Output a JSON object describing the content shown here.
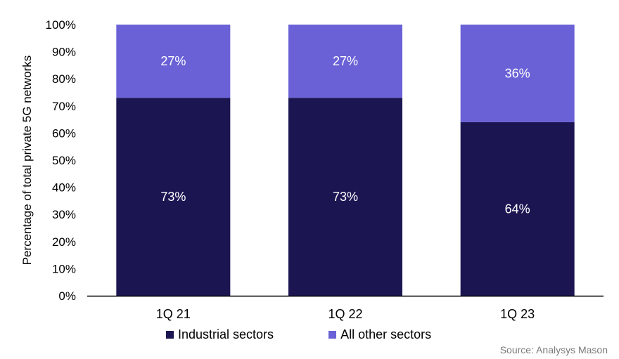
{
  "chart_data": {
    "type": "bar",
    "stacked": true,
    "categories": [
      "1Q 21",
      "1Q 22",
      "1Q 23"
    ],
    "series": [
      {
        "name": "Industrial sectors",
        "values": [
          73,
          73,
          64
        ],
        "color": "#1b1652",
        "labels": [
          "73%",
          "73%",
          "64%"
        ]
      },
      {
        "name": "All other sectors",
        "values": [
          27,
          27,
          36
        ],
        "color": "#6a61d6",
        "labels": [
          "27%",
          "27%",
          "36%"
        ]
      }
    ],
    "ylabel": "Percentage of total private 5G networks",
    "ylim": [
      0,
      100
    ],
    "yticks": [
      "0%",
      "10%",
      "20%",
      "30%",
      "40%",
      "50%",
      "60%",
      "70%",
      "80%",
      "90%",
      "100%"
    ],
    "legend_position": "bottom",
    "grid": false,
    "source": "Source: Analysys Mason"
  }
}
